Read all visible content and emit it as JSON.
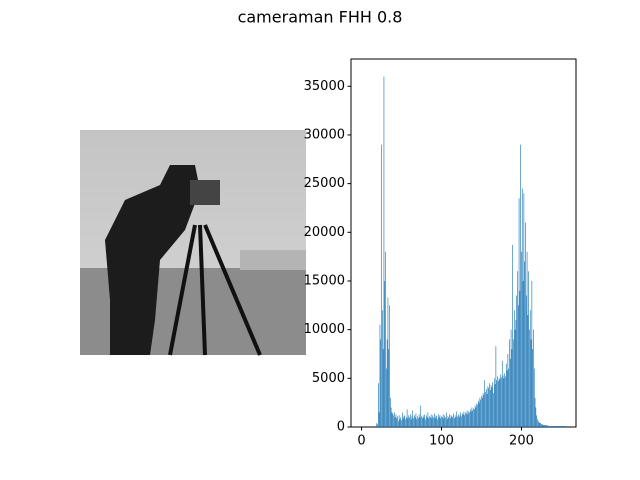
{
  "chart_data": {
    "type": "bar",
    "title": "cameraman FHH 0.8",
    "color": "#1f77b4",
    "bar_width": 0.8,
    "x": [
      0,
      1,
      2,
      3,
      4,
      5,
      6,
      7,
      8,
      9,
      10,
      11,
      12,
      13,
      14,
      15,
      16,
      17,
      18,
      19,
      20,
      21,
      22,
      23,
      24,
      25,
      26,
      27,
      28,
      29,
      30,
      31,
      32,
      33,
      34,
      35,
      36,
      37,
      38,
      39,
      40,
      41,
      42,
      43,
      44,
      45,
      46,
      47,
      48,
      49,
      50,
      51,
      52,
      53,
      54,
      55,
      56,
      57,
      58,
      59,
      60,
      61,
      62,
      63,
      64,
      65,
      66,
      67,
      68,
      69,
      70,
      71,
      72,
      73,
      74,
      75,
      76,
      77,
      78,
      79,
      80,
      81,
      82,
      83,
      84,
      85,
      86,
      87,
      88,
      89,
      90,
      91,
      92,
      93,
      94,
      95,
      96,
      97,
      98,
      99,
      100,
      101,
      102,
      103,
      104,
      105,
      106,
      107,
      108,
      109,
      110,
      111,
      112,
      113,
      114,
      115,
      116,
      117,
      118,
      119,
      120,
      121,
      122,
      123,
      124,
      125,
      126,
      127,
      128,
      129,
      130,
      131,
      132,
      133,
      134,
      135,
      136,
      137,
      138,
      139,
      140,
      141,
      142,
      143,
      144,
      145,
      146,
      147,
      148,
      149,
      150,
      151,
      152,
      153,
      154,
      155,
      156,
      157,
      158,
      159,
      160,
      161,
      162,
      163,
      164,
      165,
      166,
      167,
      168,
      169,
      170,
      171,
      172,
      173,
      174,
      175,
      176,
      177,
      178,
      179,
      180,
      181,
      182,
      183,
      184,
      185,
      186,
      187,
      188,
      189,
      190,
      191,
      192,
      193,
      194,
      195,
      196,
      197,
      198,
      199,
      200,
      201,
      202,
      203,
      204,
      205,
      206,
      207,
      208,
      209,
      210,
      211,
      212,
      213,
      214,
      215,
      216,
      217,
      218,
      219,
      220,
      221,
      222,
      223,
      224,
      225,
      226,
      227,
      228,
      229,
      230,
      231,
      232,
      233,
      234,
      235,
      236,
      237,
      238,
      239,
      240,
      241,
      242,
      243,
      244,
      245,
      246,
      247,
      248,
      249,
      250,
      251,
      252,
      253,
      254,
      255
    ],
    "values": [
      0,
      0,
      0,
      0,
      0,
      0,
      0,
      0,
      0,
      0,
      0,
      0,
      0,
      0,
      0,
      0,
      0,
      0,
      100,
      400,
      300,
      4500,
      1500,
      10500,
      9000,
      29000,
      12000,
      8000,
      36000,
      15000,
      18000,
      6000,
      9000,
      13300,
      8000,
      12500,
      3000,
      2000,
      1500,
      1400,
      1200,
      1500,
      1000,
      1300,
      900,
      1100,
      600,
      1200,
      800,
      1000,
      700,
      1500,
      900,
      1100,
      1200,
      800,
      1000,
      1800,
      900,
      1200,
      1000,
      1300,
      800,
      1100,
      1700,
      900,
      1200,
      1000,
      1400,
      800,
      1100,
      900,
      1300,
      1000,
      2200,
      1100,
      900,
      1200,
      1000,
      1300,
      800,
      1200,
      1000,
      1500,
      900,
      1100,
      1000,
      1300,
      900,
      1200,
      1000,
      1400,
      900,
      1200,
      1100,
      800,
      1300,
      1000,
      1200,
      900,
      1100,
      1000,
      1300,
      900,
      1200,
      1000,
      1500,
      800,
      1100,
      1000,
      1300,
      900,
      1200,
      1100,
      1000,
      1400,
      900,
      1200,
      1000,
      1600,
      1100,
      1300,
      1000,
      1200,
      1500,
      1100,
      1400,
      1300,
      1600,
      1200,
      1500,
      1400,
      1700,
      1300,
      1600,
      1500,
      1800,
      1600,
      2000,
      1700,
      1900,
      1800,
      2200,
      2000,
      2400,
      2300,
      2700,
      2500,
      3000,
      2800,
      3200,
      3000,
      3500,
      3300,
      4800,
      3600,
      3900,
      3400,
      4200,
      4000,
      4500,
      3800,
      4300,
      4100,
      4600,
      3500,
      5000,
      4400,
      8300,
      4800,
      5200,
      4700,
      5000,
      4900,
      5400,
      5100,
      6800,
      5300,
      5000,
      5500,
      5200,
      6500,
      5800,
      7500,
      6000,
      9000,
      7000,
      10000,
      8000,
      18700,
      9000,
      12000,
      10000,
      11000,
      13500,
      16000,
      12500,
      23500,
      14000,
      29000,
      18000,
      24500,
      15000,
      24000,
      17000,
      21000,
      13500,
      18000,
      11500,
      16000,
      10000,
      12000,
      9000,
      15000,
      8000,
      10000,
      6000,
      3000,
      2000,
      1200,
      800,
      600,
      500,
      400,
      400,
      300,
      300,
      200,
      200,
      200,
      200,
      200,
      150,
      150,
      100,
      100,
      100,
      100,
      100,
      100,
      100,
      100,
      100,
      100,
      100,
      100,
      100,
      100,
      100,
      100,
      100,
      100,
      100,
      100,
      100,
      100
    ],
    "xlim": [
      -13.2,
      268.2
    ],
    "xticks": [
      0,
      100,
      200
    ],
    "ylim": [
      0,
      37800
    ],
    "yticks": [
      0,
      5000,
      10000,
      15000,
      20000,
      25000,
      30000,
      35000
    ]
  }
}
